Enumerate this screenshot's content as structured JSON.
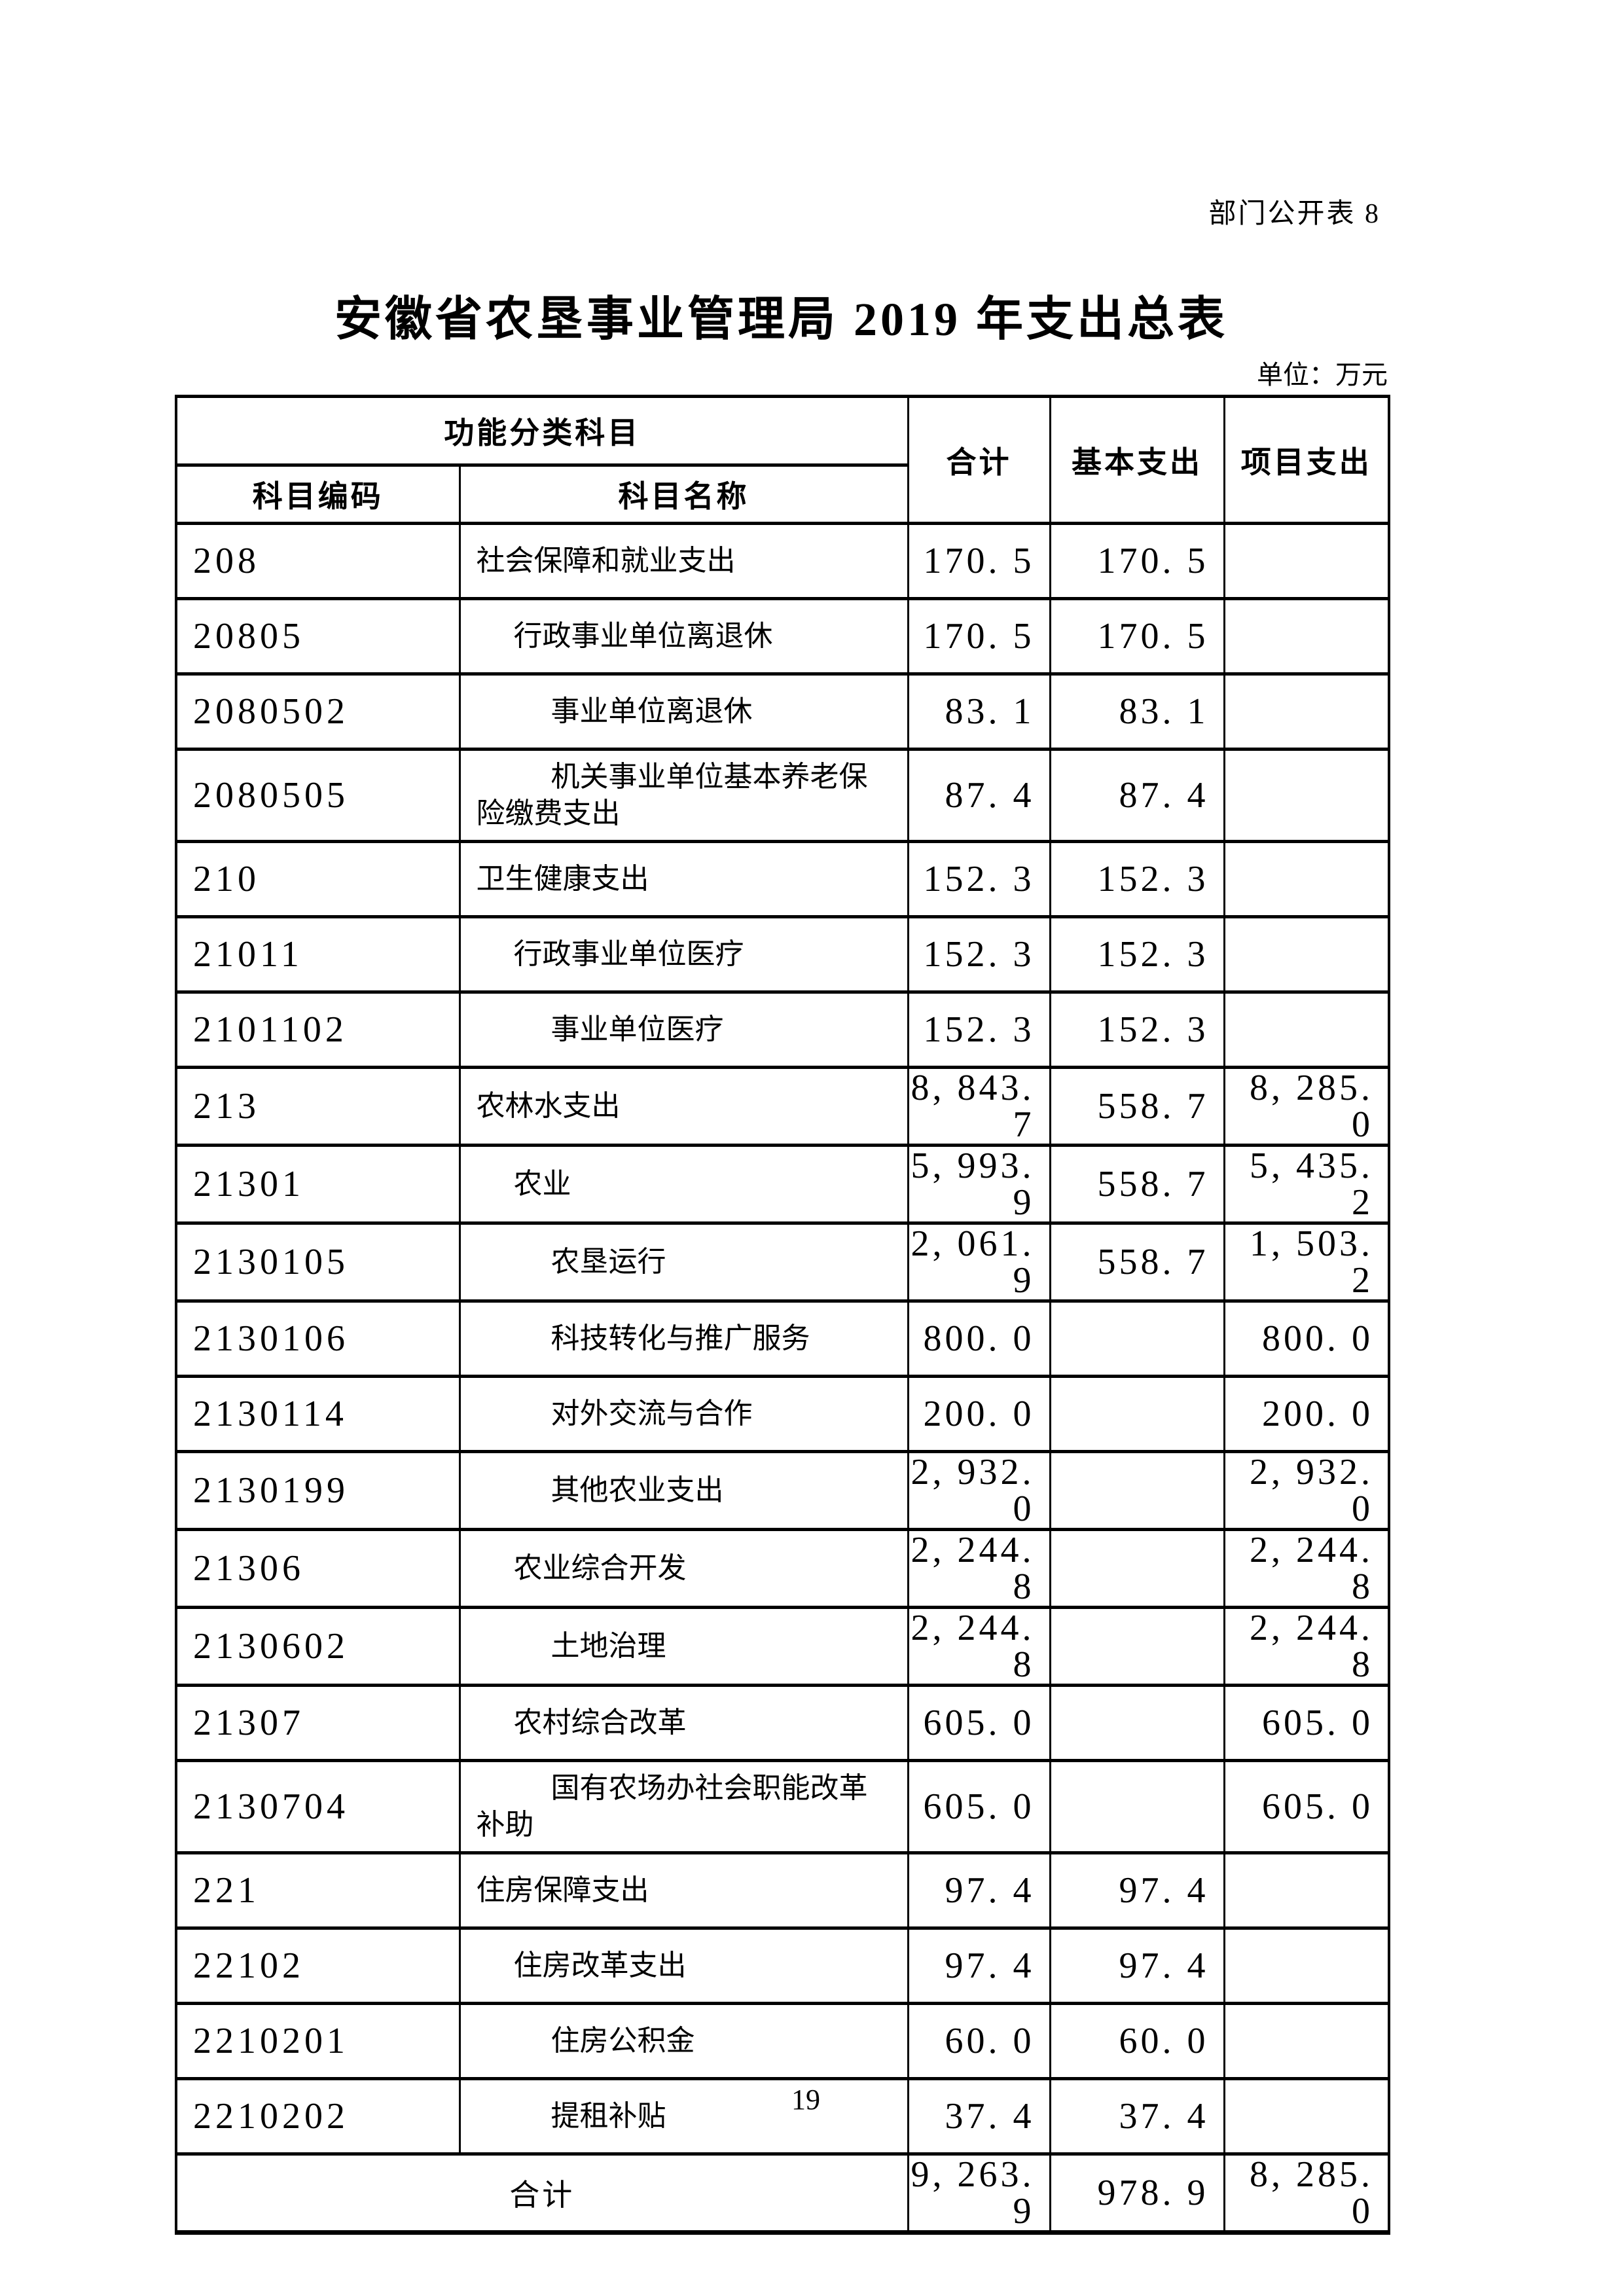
{
  "page": {
    "corner_note": "部门公开表 8",
    "title": "安徽省农垦事业管理局 2019 年支出总表",
    "unit_note": "单位：万元",
    "page_number": "19"
  },
  "colors": {
    "ink": "#000000",
    "paper": "#ffffff"
  },
  "table": {
    "header": {
      "function_group": "功能分类科目",
      "code": "科目编码",
      "name": "科目名称",
      "total": "合计",
      "basic": "基本支出",
      "project": "项目支出"
    },
    "rows": [
      {
        "code": "208",
        "name": "社会保障和就业支出",
        "indent": 0,
        "total": "170. 5",
        "basic": "170. 5",
        "project": ""
      },
      {
        "code": "20805",
        "name": "行政事业单位离退休",
        "indent": 1,
        "total": "170. 5",
        "basic": "170. 5",
        "project": ""
      },
      {
        "code": "2080502",
        "name": "事业单位离退休",
        "indent": 2,
        "total": "83. 1",
        "basic": "83. 1",
        "project": ""
      },
      {
        "code": "2080505",
        "name": "机关事业单位基本养老保险缴费支出",
        "indent": 2,
        "total": "87. 4",
        "basic": "87. 4",
        "project": ""
      },
      {
        "code": "210",
        "name": "卫生健康支出",
        "indent": 0,
        "total": "152. 3",
        "basic": "152. 3",
        "project": ""
      },
      {
        "code": "21011",
        "name": "行政事业单位医疗",
        "indent": 1,
        "total": "152. 3",
        "basic": "152. 3",
        "project": ""
      },
      {
        "code": "2101102",
        "name": "事业单位医疗",
        "indent": 2,
        "total": "152. 3",
        "basic": "152. 3",
        "project": ""
      },
      {
        "code": "213",
        "name": "农林水支出",
        "indent": 0,
        "total": "8, 843. 7",
        "basic": "558. 7",
        "project": "8, 285. 0"
      },
      {
        "code": "21301",
        "name": "农业",
        "indent": 1,
        "total": "5, 993. 9",
        "basic": "558. 7",
        "project": "5, 435. 2"
      },
      {
        "code": "2130105",
        "name": "农垦运行",
        "indent": 2,
        "total": "2, 061. 9",
        "basic": "558. 7",
        "project": "1, 503. 2"
      },
      {
        "code": "2130106",
        "name": "科技转化与推广服务",
        "indent": 2,
        "total": "800. 0",
        "basic": "",
        "project": "800. 0"
      },
      {
        "code": "2130114",
        "name": "对外交流与合作",
        "indent": 2,
        "total": "200. 0",
        "basic": "",
        "project": "200. 0"
      },
      {
        "code": "2130199",
        "name": "其他农业支出",
        "indent": 2,
        "total": "2, 932. 0",
        "basic": "",
        "project": "2, 932. 0"
      },
      {
        "code": "21306",
        "name": "农业综合开发",
        "indent": 1,
        "total": "2, 244. 8",
        "basic": "",
        "project": "2, 244. 8"
      },
      {
        "code": "2130602",
        "name": "土地治理",
        "indent": 2,
        "total": "2, 244. 8",
        "basic": "",
        "project": "2, 244. 8"
      },
      {
        "code": "21307",
        "name": "农村综合改革",
        "indent": 1,
        "total": "605. 0",
        "basic": "",
        "project": "605. 0"
      },
      {
        "code": "2130704",
        "name": "国有农场办社会职能改革补助",
        "indent": 2,
        "total": "605. 0",
        "basic": "",
        "project": "605. 0"
      },
      {
        "code": "221",
        "name": "住房保障支出",
        "indent": 0,
        "total": "97. 4",
        "basic": "97. 4",
        "project": ""
      },
      {
        "code": "22102",
        "name": "住房改革支出",
        "indent": 1,
        "total": "97. 4",
        "basic": "97. 4",
        "project": ""
      },
      {
        "code": "2210201",
        "name": "住房公积金",
        "indent": 2,
        "total": "60. 0",
        "basic": "60. 0",
        "project": ""
      },
      {
        "code": "2210202",
        "name": "提租补贴",
        "indent": 2,
        "total": "37. 4",
        "basic": "37. 4",
        "project": ""
      }
    ],
    "footer": {
      "label": "合计",
      "total": "9, 263. 9",
      "basic": "978. 9",
      "project": "8, 285. 0"
    }
  }
}
